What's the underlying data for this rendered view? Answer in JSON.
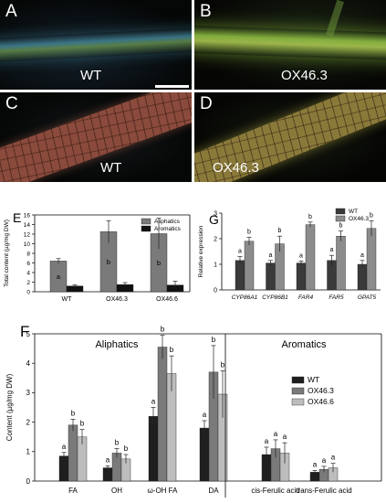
{
  "photos": {
    "A": {
      "label": "A",
      "caption": "WT"
    },
    "B": {
      "label": "B",
      "caption": "OX46.3"
    },
    "C": {
      "label": "C",
      "caption": "WT"
    },
    "D": {
      "label": "D",
      "caption": "OX46.3"
    }
  },
  "colors": {
    "dark": "#1f1f1f",
    "mid": "#7a7a7a",
    "light": "#bdbdbd"
  },
  "chart_data": [
    {
      "id": "E",
      "type": "bar",
      "panel_label": "E",
      "ylabel": "Total content (µg/mg DW)",
      "categories": [
        "WT",
        "OX46.3",
        "OX46.6"
      ],
      "ylim": [
        0,
        16
      ],
      "yticks": [
        0,
        2,
        4,
        6,
        8,
        10,
        12,
        14,
        16
      ],
      "series": [
        {
          "name": "Aliphatics",
          "color": "#7a7a7a",
          "values": [
            6.4,
            12.5,
            12.1
          ],
          "errors": [
            0.5,
            2.3,
            3.2
          ],
          "letters": [
            "a",
            "b",
            "b"
          ]
        },
        {
          "name": "Aromatics",
          "color": "#111111",
          "values": [
            1.2,
            1.5,
            1.4
          ],
          "errors": [
            0.2,
            0.4,
            0.8
          ],
          "letters": [
            "",
            "",
            ""
          ]
        }
      ],
      "legend": "top-right"
    },
    {
      "id": "G",
      "type": "bar",
      "panel_label": "G",
      "ylabel": "Relative expression",
      "categories": [
        "CYP86A1",
        "CYP86B1",
        "FAR4",
        "FAR5",
        "GPAT5"
      ],
      "ylim": [
        0,
        3
      ],
      "yticks": [
        0,
        1,
        2,
        3
      ],
      "series": [
        {
          "name": "WT",
          "color": "#3a3a3a",
          "values": [
            1.15,
            1.05,
            1.05,
            1.15,
            1.0
          ],
          "errors": [
            0.15,
            0.1,
            0.08,
            0.2,
            0.15
          ],
          "letters": [
            "a",
            "a",
            "a",
            "a",
            "a"
          ]
        },
        {
          "name": "OX46.3",
          "color": "#8c8c8c",
          "values": [
            1.9,
            1.8,
            2.55,
            2.1,
            2.4
          ],
          "errors": [
            0.15,
            0.3,
            0.1,
            0.2,
            0.3
          ],
          "letters": [
            "b",
            "b",
            "b",
            "b",
            "b"
          ]
        }
      ],
      "legend": "top-right"
    },
    {
      "id": "F",
      "type": "bar",
      "panel_label": "F",
      "ylabel": "Content (µg/mg DW)",
      "categories": [
        "FA",
        "OH",
        "ω-OH FA",
        "DA",
        "cis-Ferulic acid",
        "trans-Ferulic acid"
      ],
      "groups": [
        "Aliphatics",
        "Aromatics"
      ],
      "ylim": [
        0,
        5
      ],
      "yticks": [
        0,
        1,
        2,
        3,
        4,
        5
      ],
      "series": [
        {
          "name": "WT",
          "color": "#1f1f1f",
          "values": [
            0.85,
            0.45,
            2.2,
            1.8,
            0.9,
            0.3
          ],
          "errors": [
            0.12,
            0.07,
            0.3,
            0.25,
            0.25,
            0.06
          ],
          "letters": [
            "a",
            "a",
            "a",
            "a",
            "a",
            "a"
          ]
        },
        {
          "name": "OX46.3",
          "color": "#7a7a7a",
          "values": [
            1.9,
            0.95,
            4.55,
            3.7,
            1.1,
            0.4
          ],
          "errors": [
            0.2,
            0.15,
            0.4,
            0.9,
            0.3,
            0.1
          ],
          "letters": [
            "b",
            "b",
            "b",
            "b",
            "a",
            "a"
          ]
        },
        {
          "name": "OX46.6",
          "color": "#bdbdbd",
          "values": [
            1.5,
            0.75,
            3.65,
            2.95,
            0.95,
            0.45
          ],
          "errors": [
            0.25,
            0.15,
            0.6,
            0.8,
            0.35,
            0.15
          ],
          "letters": [
            "b",
            "b",
            "b",
            "b",
            "a",
            "a"
          ]
        }
      ],
      "legend": "top-right"
    }
  ]
}
